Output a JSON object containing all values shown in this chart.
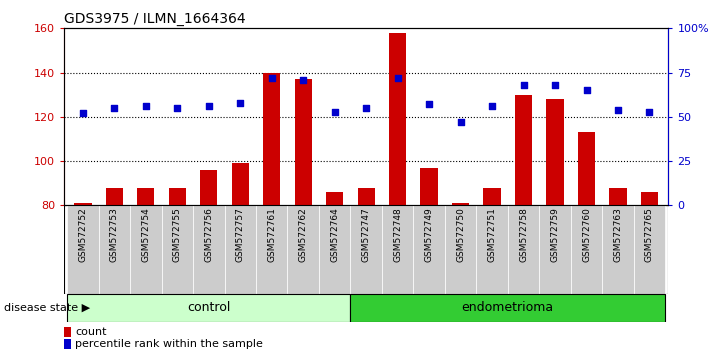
{
  "title": "GDS3975 / ILMN_1664364",
  "samples": [
    "GSM572752",
    "GSM572753",
    "GSM572754",
    "GSM572755",
    "GSM572756",
    "GSM572757",
    "GSM572761",
    "GSM572762",
    "GSM572764",
    "GSM572747",
    "GSM572748",
    "GSM572749",
    "GSM572750",
    "GSM572751",
    "GSM572758",
    "GSM572759",
    "GSM572760",
    "GSM572763",
    "GSM572765"
  ],
  "counts": [
    81,
    88,
    88,
    88,
    96,
    99,
    140,
    137,
    86,
    88,
    158,
    97,
    81,
    88,
    130,
    128,
    113,
    88,
    86
  ],
  "percentiles": [
    52,
    55,
    56,
    55,
    56,
    58,
    72,
    71,
    53,
    55,
    72,
    57,
    47,
    56,
    68,
    68,
    65,
    54,
    53
  ],
  "control_count": 9,
  "endometrioma_count": 10,
  "ylim_left": [
    80,
    160
  ],
  "ylim_right": [
    0,
    100
  ],
  "yticks_left": [
    80,
    100,
    120,
    140,
    160
  ],
  "yticks_right": [
    0,
    25,
    50,
    75,
    100
  ],
  "ytick_labels_right": [
    "0",
    "25",
    "50",
    "75",
    "100%"
  ],
  "bar_color": "#cc0000",
  "dot_color": "#0000cc",
  "bar_baseline": 80,
  "control_label": "control",
  "endo_label": "endometrioma",
  "disease_state_label": "disease state",
  "legend_count": "count",
  "legend_pct": "percentile rank within the sample",
  "control_bg": "#ccffcc",
  "endo_bg": "#33cc33",
  "sample_bg": "#cccccc",
  "grid_color": "#000000"
}
